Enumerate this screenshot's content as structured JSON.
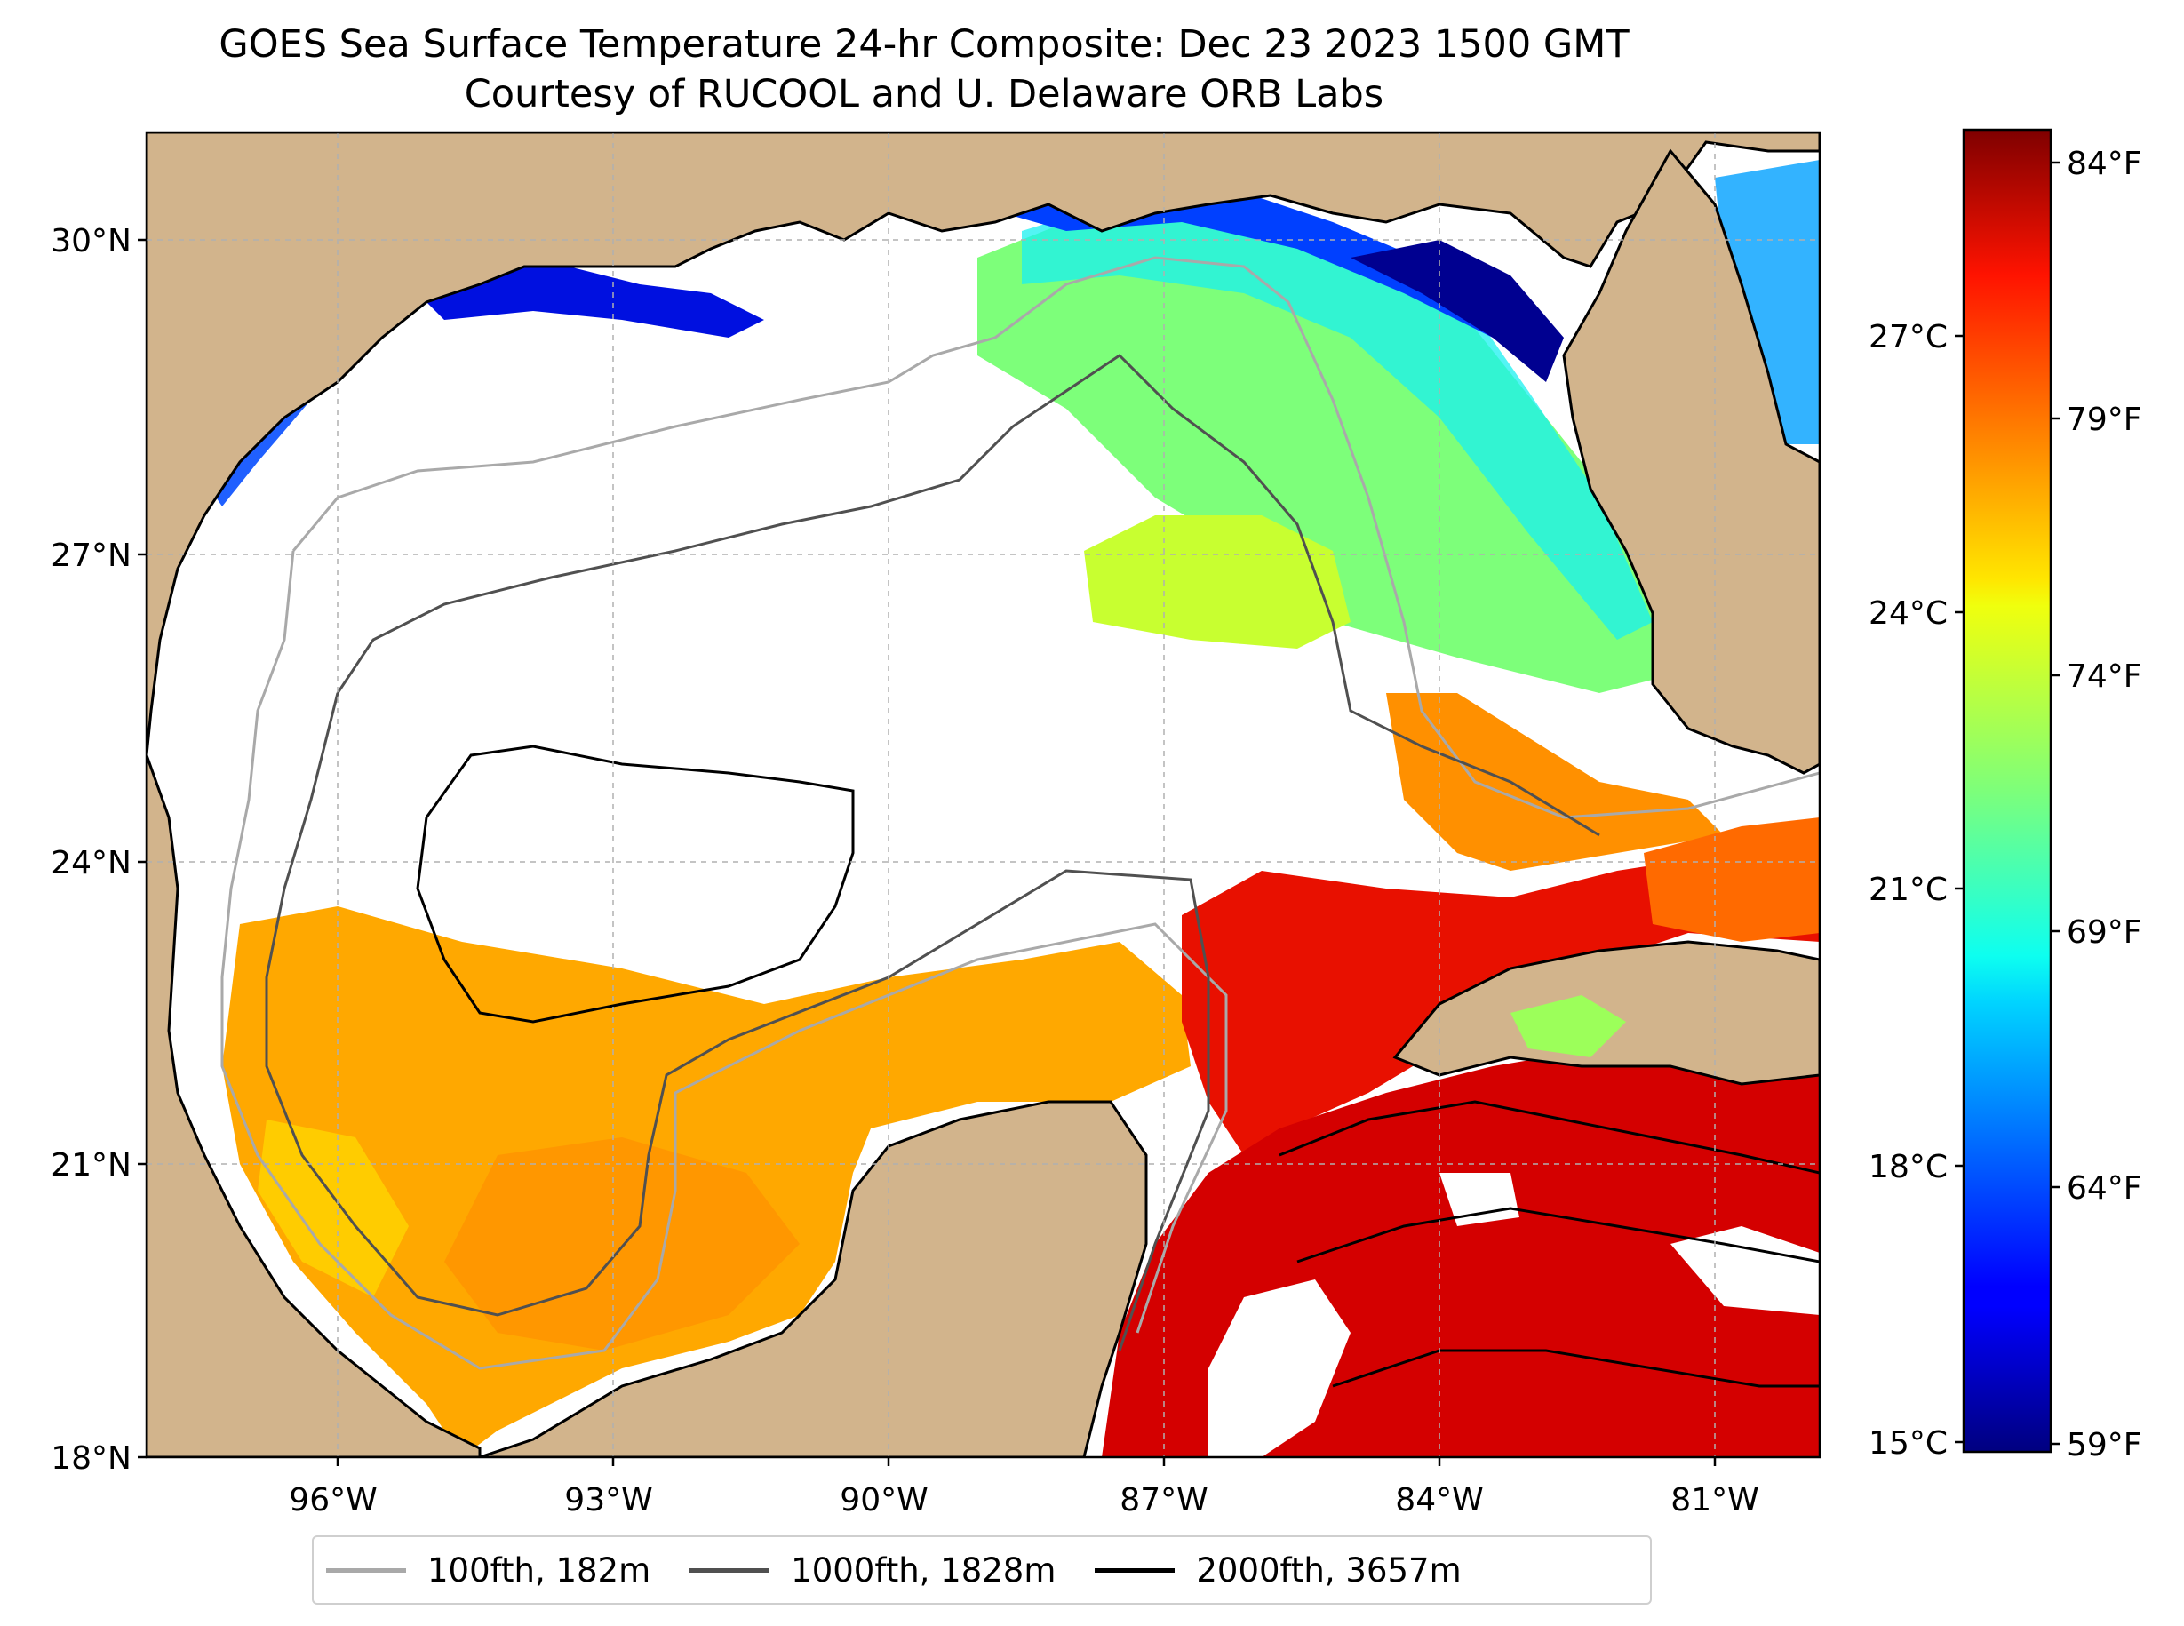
{
  "title": {
    "line1": "GOES Sea Surface Temperature 24-hr Composite: Dec 23 2023 1500 GMT",
    "line2": "Courtesy of RUCOOL and U. Delaware ORB Labs"
  },
  "map": {
    "lat_ticks": [
      "30°N",
      "27°N",
      "24°N",
      "21°N",
      "18°N"
    ],
    "lon_ticks": [
      "96°W",
      "93°W",
      "90°W",
      "87°W",
      "84°W",
      "81°W"
    ],
    "land_color": "#d2b48c",
    "water_color": "#ffffff",
    "grid_color": "#b0b0b0"
  },
  "colorbar": {
    "celsius_ticks": [
      "27°C",
      "24°C",
      "21°C",
      "18°C",
      "15°C"
    ],
    "fahrenheit_ticks": [
      "84°F",
      "79°F",
      "74°F",
      "69°F",
      "64°F",
      "59°F"
    ],
    "colormap": "jet",
    "min_c": 15,
    "max_c": 28.9
  },
  "legend": [
    {
      "label": "100fth, 182m",
      "color": "#a9a9a9"
    },
    {
      "label": "1000fth, 1828m",
      "color": "#505050"
    },
    {
      "label": "2000fth, 3657m",
      "color": "#000000"
    }
  ]
}
